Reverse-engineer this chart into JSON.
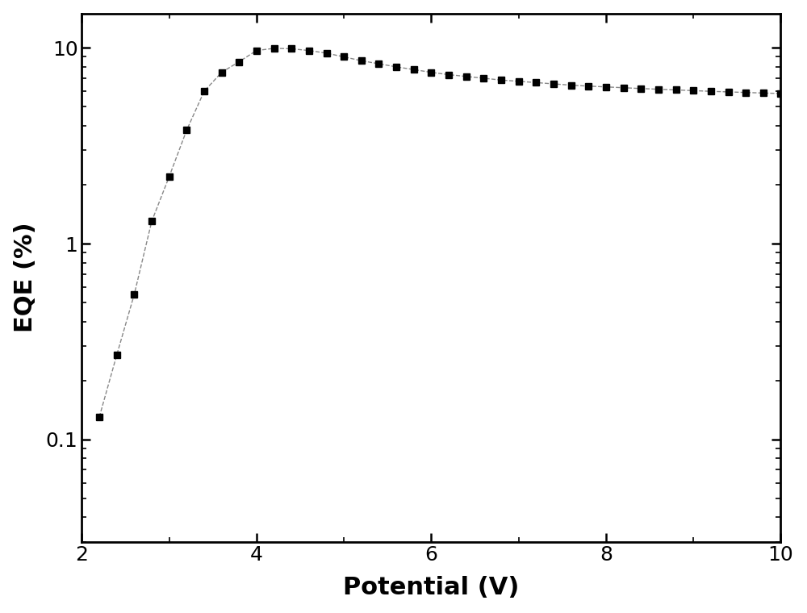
{
  "x": [
    2.2,
    2.4,
    2.6,
    2.8,
    3.0,
    3.2,
    3.4,
    3.6,
    3.8,
    4.0,
    4.2,
    4.4,
    4.6,
    4.8,
    5.0,
    5.2,
    5.4,
    5.6,
    5.8,
    6.0,
    6.2,
    6.4,
    6.6,
    6.8,
    7.0,
    7.2,
    7.4,
    7.6,
    7.8,
    8.0,
    8.2,
    8.4,
    8.6,
    8.8,
    9.0,
    9.2,
    9.4,
    9.6,
    9.8,
    10.0
  ],
  "y": [
    0.13,
    0.27,
    0.55,
    1.3,
    2.2,
    3.8,
    6.0,
    7.5,
    8.5,
    9.7,
    9.95,
    9.9,
    9.7,
    9.4,
    9.0,
    8.6,
    8.3,
    8.0,
    7.75,
    7.5,
    7.3,
    7.15,
    7.0,
    6.85,
    6.75,
    6.65,
    6.55,
    6.45,
    6.38,
    6.32,
    6.26,
    6.2,
    6.15,
    6.1,
    6.05,
    6.0,
    5.96,
    5.92,
    5.88,
    5.85
  ],
  "xlabel": "Potential (V)",
  "ylabel": "EQE (%)",
  "xlim": [
    2,
    10
  ],
  "ylim": [
    0.03,
    15
  ],
  "xticks": [
    2,
    4,
    6,
    8,
    10
  ],
  "yticks": [
    0.1,
    1,
    10
  ],
  "ytick_labels": [
    "0.1",
    "1",
    "10"
  ],
  "marker": "s",
  "marker_color": "#000000",
  "marker_size": 6,
  "line_style": "--",
  "line_color": "#888888",
  "line_width": 1.0,
  "xlabel_fontsize": 22,
  "ylabel_fontsize": 22,
  "tick_fontsize": 18,
  "xlabel_fontweight": "bold",
  "ylabel_fontweight": "bold",
  "background_color": "#ffffff",
  "spine_linewidth": 2.0
}
